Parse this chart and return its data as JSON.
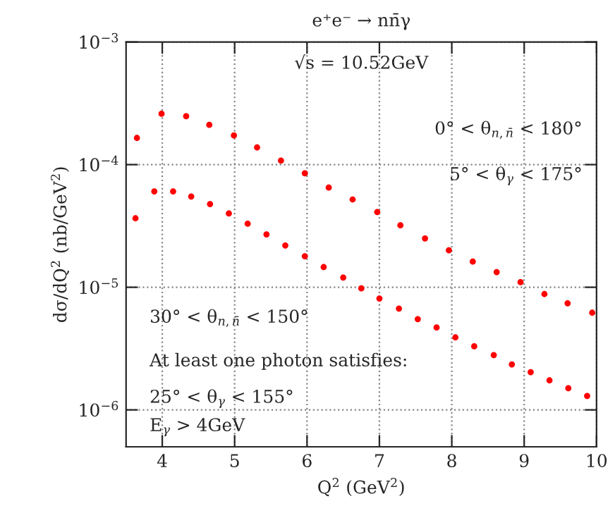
{
  "chart_data": {
    "type": "scatter",
    "title": "e⁺e⁻ → nn̄γ",
    "xlabel": "Q$^{2}$ (GeV$^{2}$)",
    "ylabel": "dσ/dQ$^{2}$ (nb/GeV$^{2}$)",
    "annotations": [
      "√s = 10.52GeV",
      "0° < θ$_{n,n̄}$ < 180°",
      "5° < θ$_{γ}$ < 175°",
      "30° < θ$_{n,n̄}$ < 150°",
      "At least one photon satisfies:",
      "25° < θ$_{γ}$ < 155°",
      "E$_{γ}$ > 4GeV"
    ],
    "series": [
      {
        "color": "#ff0000",
        "x": [
          3.65,
          3.99,
          4.33,
          4.65,
          4.99,
          5.31,
          5.64,
          5.97,
          6.3,
          6.63,
          6.97,
          7.29,
          7.63,
          7.96,
          8.29,
          8.62,
          8.95,
          9.28,
          9.6,
          9.94
        ],
        "values": [
          0.000165,
          0.00026,
          0.000248,
          0.000211,
          0.000173,
          0.000138,
          0.000108,
          8.5e-05,
          6.5e-05,
          5.2e-05,
          4.1e-05,
          3.2e-05,
          2.5e-05,
          2e-05,
          1.62e-05,
          1.33e-05,
          1.1e-05,
          8.8e-06,
          7.4e-06,
          6.2e-06
        ]
      },
      {
        "color": "#ff0000",
        "x": [
          3.63,
          3.89,
          4.15,
          4.4,
          4.66,
          4.92,
          5.18,
          5.44,
          5.7,
          5.97,
          6.23,
          6.5,
          6.75,
          7.0,
          7.27,
          7.53,
          7.79,
          8.05,
          8.31,
          8.58,
          8.83,
          9.09,
          9.35,
          9.61,
          9.87
        ],
        "values": [
          3.65e-05,
          6.05e-05,
          6.05e-05,
          5.5e-05,
          4.77e-05,
          4e-05,
          3.3e-05,
          2.7e-05,
          2.19e-05,
          1.79e-05,
          1.46e-05,
          1.2e-05,
          9.8e-06,
          8.1e-06,
          6.7e-06,
          5.5e-06,
          4.7e-06,
          3.9e-06,
          3.3e-06,
          2.8e-06,
          2.35e-06,
          2.03e-06,
          1.74e-06,
          1.5e-06,
          1.3e-06
        ]
      }
    ],
    "xlim": [
      3.5,
      10
    ],
    "xticks": [
      4,
      5,
      6,
      7,
      8,
      9,
      10
    ],
    "ylim": [
      5e-07,
      0.001
    ],
    "yticks": [
      {
        "value": 1e-06,
        "label": "10$^{−6}$"
      },
      {
        "value": 1e-05,
        "label": "10$^{−5}$"
      },
      {
        "value": 0.0001,
        "label": "10$^{−4}$"
      },
      {
        "value": 0.001,
        "label": "10$^{−3}$"
      }
    ],
    "log": "y",
    "grid": true,
    "marker": "circle"
  }
}
